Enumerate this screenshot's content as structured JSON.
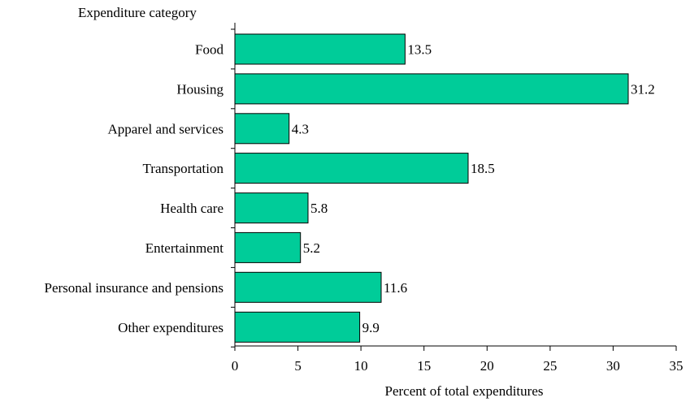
{
  "chart_data": {
    "type": "bar",
    "orientation": "horizontal",
    "title": "",
    "ylabel": "Expenditure category",
    "xlabel": "Percent of total expenditures",
    "categories": [
      "Food",
      "Housing",
      "Apparel and services",
      "Transportation",
      "Health care",
      "Entertainment",
      "Personal insurance and pensions",
      "Other expenditures"
    ],
    "values": [
      13.5,
      31.2,
      4.3,
      18.5,
      5.8,
      5.2,
      11.6,
      9.9
    ],
    "value_labels": [
      "13.5",
      "31.2",
      "4.3",
      "18.5",
      "5.8",
      "5.2",
      "11.6",
      "9.9"
    ],
    "xlim": [
      0,
      35
    ],
    "x_ticks": [
      0,
      5,
      10,
      15,
      20,
      25,
      30,
      35
    ],
    "x_tick_labels": [
      "0",
      "5",
      "10",
      "15",
      "20",
      "25",
      "30",
      "35"
    ],
    "grid": false,
    "legend": "none",
    "colors": {
      "bar": "#00CC99",
      "bar_outline": "#000000",
      "axis": "#000000"
    }
  }
}
